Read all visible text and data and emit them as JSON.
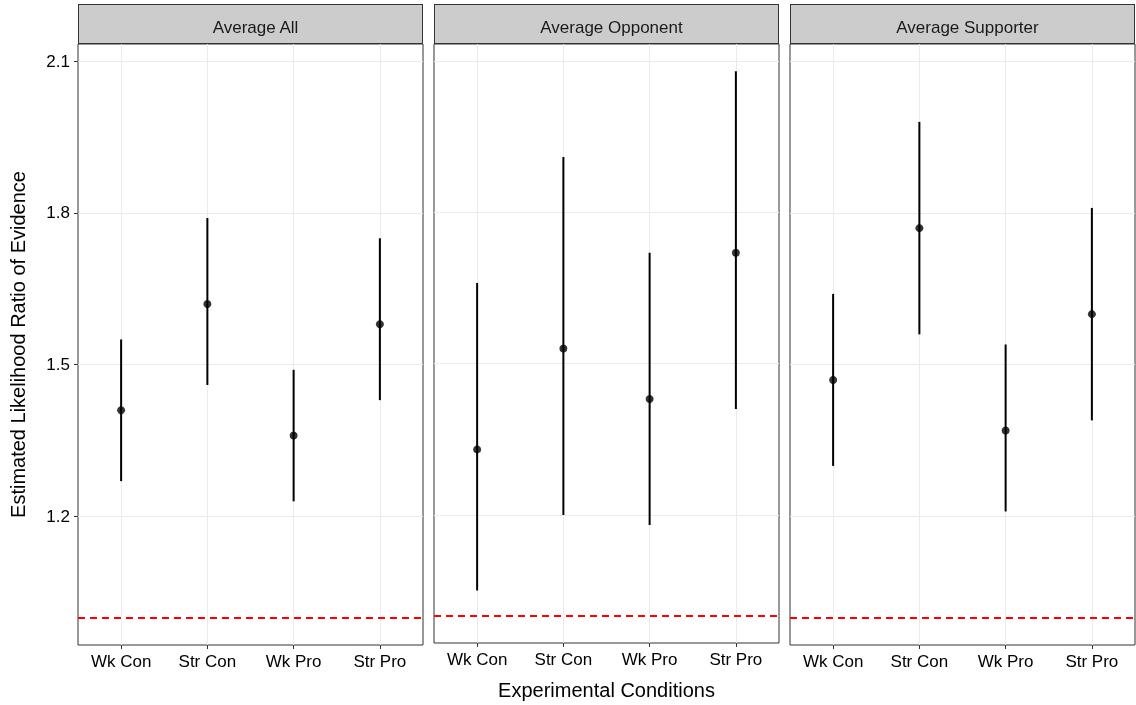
{
  "chart_data": [
    {
      "type": "scatter",
      "title": "Average All",
      "ylabel": "Estimated Likelihood Ratio of Evidence",
      "categories": [
        "Wk Con",
        "Str Con",
        "Wk Pro",
        "Str Pro"
      ],
      "values": [
        1.41,
        1.62,
        1.36,
        1.58
      ],
      "errors": [
        [
          1.27,
          1.55
        ],
        [
          1.46,
          1.79
        ],
        [
          1.23,
          1.49
        ],
        [
          1.43,
          1.75
        ]
      ],
      "color": "#000000",
      "ylim": [
        0.946,
        2.134
      ],
      "yticks": [
        1.2,
        1.5,
        1.8,
        2.1
      ],
      "grid": true,
      "marker": "circle",
      "ref_lines": [
        {
          "axis": "y",
          "value": 1,
          "color": "#ff0000",
          "line_style": "dashed"
        }
      ]
    },
    {
      "type": "scatter",
      "title": "Average Opponent",
      "xlabel": "Experimental Conditions",
      "categories": [
        "Wk Con",
        "Str Con",
        "Wk Pro",
        "Str Pro"
      ],
      "values": [
        1.33,
        1.53,
        1.43,
        1.72
      ],
      "errors": [
        [
          1.05,
          1.66
        ],
        [
          1.2,
          1.91
        ],
        [
          1.18,
          1.72
        ],
        [
          1.41,
          2.08
        ]
      ],
      "color": "#000000",
      "ylim": [
        0.946,
        2.134
      ],
      "yticks": [
        1.2,
        1.5,
        1.8,
        2.1
      ],
      "tick_labels": "x",
      "grid": true,
      "marker": "circle",
      "ref_lines": [
        {
          "axis": "y",
          "value": 1,
          "color": "#ff0000",
          "line_style": "dashed"
        }
      ]
    },
    {
      "type": "scatter",
      "title": "Average Supporter",
      "categories": [
        "Wk Con",
        "Str Con",
        "Wk Pro",
        "Str Pro"
      ],
      "values": [
        1.47,
        1.77,
        1.37,
        1.6
      ],
      "errors": [
        [
          1.3,
          1.64
        ],
        [
          1.56,
          1.98
        ],
        [
          1.21,
          1.54
        ],
        [
          1.39,
          1.81
        ]
      ],
      "color": "#000000",
      "ylim": [
        0.946,
        2.134
      ],
      "yticks": [
        1.2,
        1.5,
        1.8,
        2.1
      ],
      "tick_labels": "x",
      "grid": true,
      "marker": "circle",
      "ref_lines": [
        {
          "axis": "y",
          "value": 1,
          "color": "#ff0000",
          "line_style": "dashed"
        }
      ]
    }
  ]
}
